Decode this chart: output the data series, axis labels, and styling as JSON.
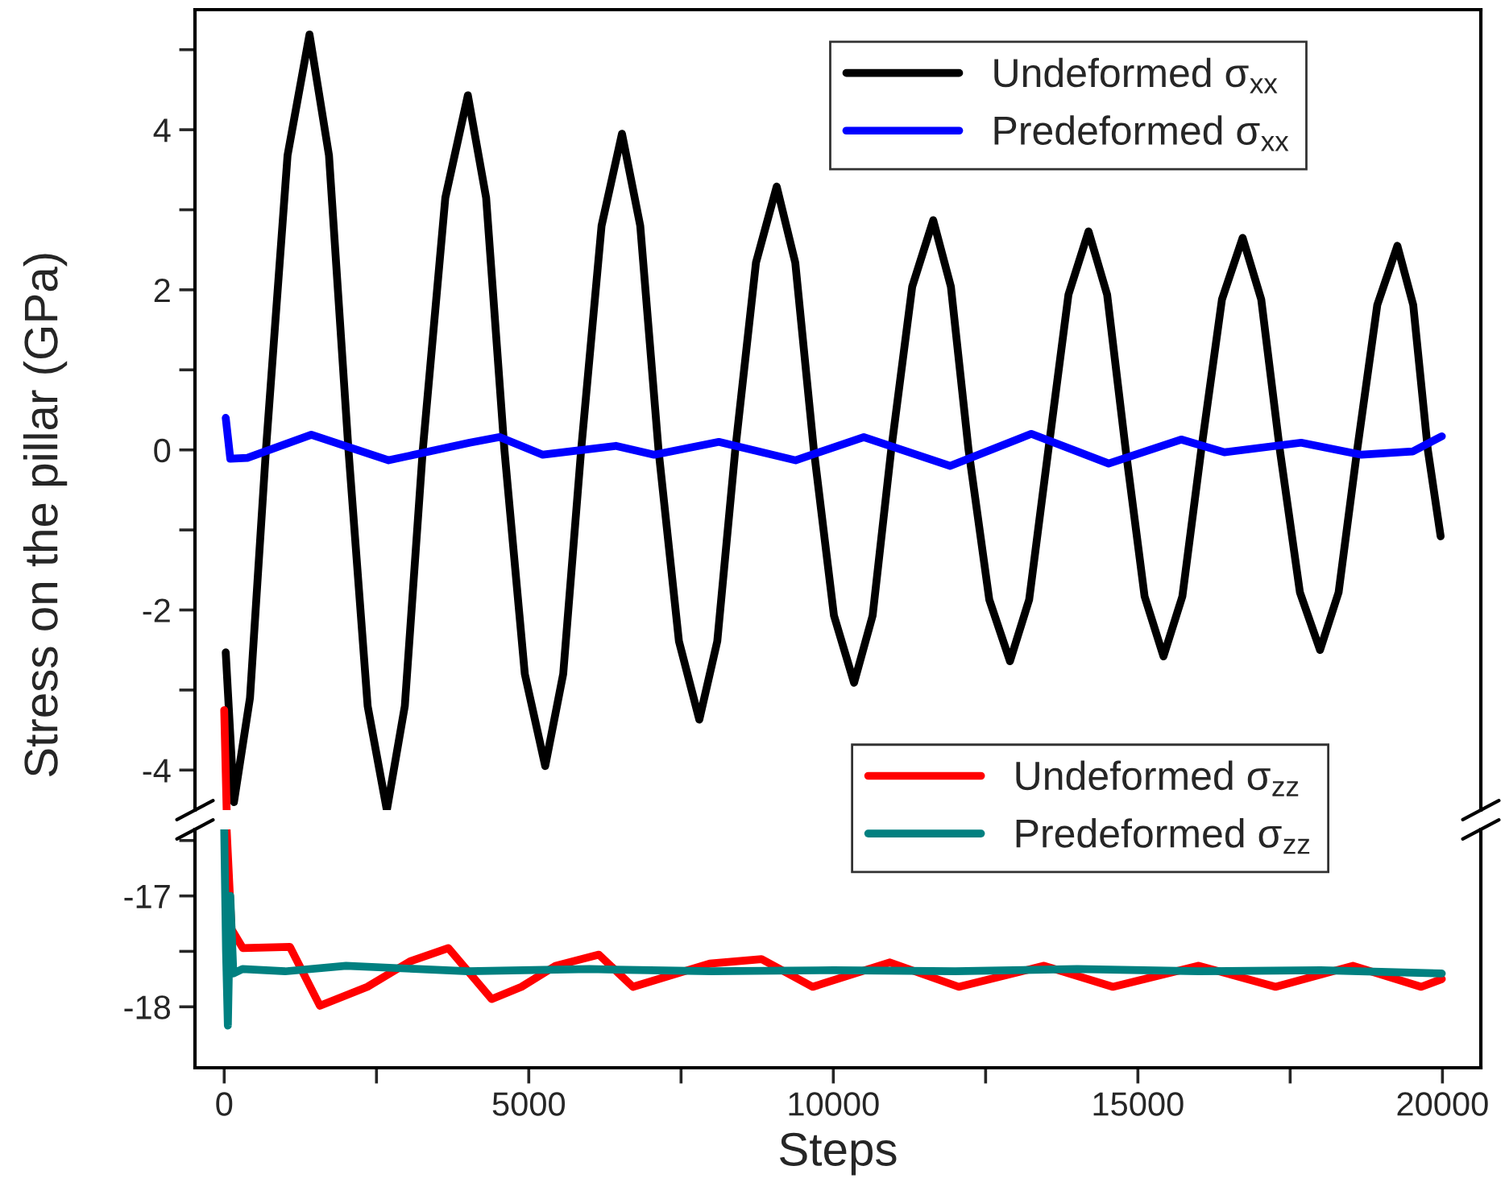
{
  "chart_data": [
    {
      "type": "line",
      "ylabel": "Stress on the pillar (GPa)",
      "xlim": [
        -480,
        20630
      ],
      "ylim": [
        -4.5,
        5.5
      ],
      "yticks": [
        -4,
        {
          "value": -3,
          "label": null
        },
        -2,
        {
          "value": -1,
          "label": null
        },
        0,
        {
          "value": 1,
          "label": null
        },
        2,
        {
          "value": 3,
          "label": null
        },
        4,
        {
          "value": 5,
          "label": null
        }
      ],
      "tick_labels": "y",
      "legend": "top right",
      "grid": false,
      "series": [
        {
          "name": "Undeformed σ$_{xx}$",
          "color": "#000000",
          "x": [
            25,
            160,
            423,
            685,
            1040,
            1400,
            1720,
            2040,
            2355,
            2670,
            2965,
            3260,
            3630,
            4000,
            4300,
            4600,
            4935,
            5270,
            5565,
            5860,
            6195,
            6530,
            6830,
            7130,
            7465,
            7800,
            8095,
            8390,
            8730,
            9070,
            9375,
            9680,
            10010,
            10340,
            10645,
            10950,
            11295,
            11640,
            11930,
            12220,
            12560,
            12900,
            13215,
            13530,
            13860,
            14190,
            14495,
            14800,
            15110,
            15420,
            15730,
            16040,
            16380,
            16720,
            17025,
            17330,
            17660,
            17990,
            18295,
            18600,
            18930,
            19260,
            19520,
            19760,
            19970
          ],
          "values": [
            -2.53,
            -4.4,
            -3.1,
            0,
            3.68,
            5.19,
            3.68,
            0,
            -3.2,
            -4.5,
            -3.2,
            0,
            3.15,
            4.43,
            3.15,
            0,
            -2.8,
            -3.95,
            -2.8,
            0,
            2.8,
            3.95,
            2.8,
            0,
            -2.39,
            -3.37,
            -2.39,
            0,
            2.34,
            3.29,
            2.34,
            0,
            -2.07,
            -2.91,
            -2.07,
            0,
            2.04,
            2.87,
            2.04,
            0,
            -1.87,
            -2.64,
            -1.87,
            0,
            1.94,
            2.73,
            1.94,
            0,
            -1.83,
            -2.58,
            -1.83,
            0,
            1.88,
            2.65,
            1.88,
            0,
            -1.78,
            -2.5,
            -1.78,
            0,
            1.81,
            2.55,
            1.81,
            0,
            -1.08
          ]
        },
        {
          "name": "Predeformed σ$_{xx}$",
          "color": "#0000ff",
          "x": [
            25,
            100,
            380,
            1430,
            2700,
            4030,
            4520,
            5230,
            6430,
            7060,
            8120,
            9380,
            10500,
            11920,
            13250,
            14520,
            15710,
            16420,
            17680,
            18670,
            19510,
            19990
          ],
          "values": [
            0.4,
            -0.11,
            -0.1,
            0.19,
            -0.13,
            0.09,
            0.16,
            -0.06,
            0.05,
            -0.06,
            0.1,
            -0.13,
            0.16,
            -0.2,
            0.2,
            -0.17,
            0.13,
            -0.03,
            0.09,
            -0.06,
            -0.02,
            0.17
          ]
        },
        {
          "color": "#ff0000",
          "x": [
            0,
            40
          ],
          "values": [
            -3.25,
            -4.5
          ]
        }
      ]
    },
    {
      "type": "line",
      "xlabel": "Steps",
      "xlim": [
        -480,
        20630
      ],
      "ylim": [
        -18.55,
        -16.4
      ],
      "xticks": [
        0,
        {
          "value": 2500,
          "label": null
        },
        5000,
        {
          "value": 7500,
          "label": null
        },
        10000,
        {
          "value": 12500,
          "label": null
        },
        15000,
        {
          "value": 17500,
          "label": null
        },
        20000
      ],
      "yticks": [
        -18,
        {
          "value": -17.5,
          "label": null
        },
        -17,
        {
          "value": -16.5,
          "label": null
        }
      ],
      "legend": "top right",
      "grid": false,
      "series": [
        {
          "name": "Undeformed σ$_{zz}$",
          "color": "#ff0000",
          "x": [
            40,
            120,
            304,
            1080,
            1570,
            2350,
            3050,
            3680,
            4390,
            4880,
            5440,
            6150,
            6710,
            7970,
            8820,
            9660,
            10930,
            12060,
            13460,
            14590,
            16000,
            17260,
            18530,
            19650,
            19990
          ],
          "values": [
            -16.4,
            -17.3,
            -17.47,
            -17.46,
            -17.99,
            -17.82,
            -17.59,
            -17.47,
            -17.93,
            -17.82,
            -17.63,
            -17.53,
            -17.82,
            -17.61,
            -17.57,
            -17.82,
            -17.6,
            -17.82,
            -17.63,
            -17.82,
            -17.63,
            -17.82,
            -17.63,
            -17.82,
            -17.75
          ]
        },
        {
          "name": "Predeformed σ$_{zz}$",
          "color": "#008080",
          "x": [
            0,
            30,
            60,
            100,
            150,
            300,
            1000,
            2000,
            4000,
            6000,
            8000,
            10000,
            12000,
            14000,
            16000,
            18000,
            19990
          ],
          "values": [
            -16.4,
            -17.5,
            -18.17,
            -17.0,
            -17.7,
            -17.66,
            -17.68,
            -17.63,
            -17.68,
            -17.66,
            -17.68,
            -17.67,
            -17.68,
            -17.66,
            -17.68,
            -17.67,
            -17.7
          ]
        }
      ]
    }
  ]
}
